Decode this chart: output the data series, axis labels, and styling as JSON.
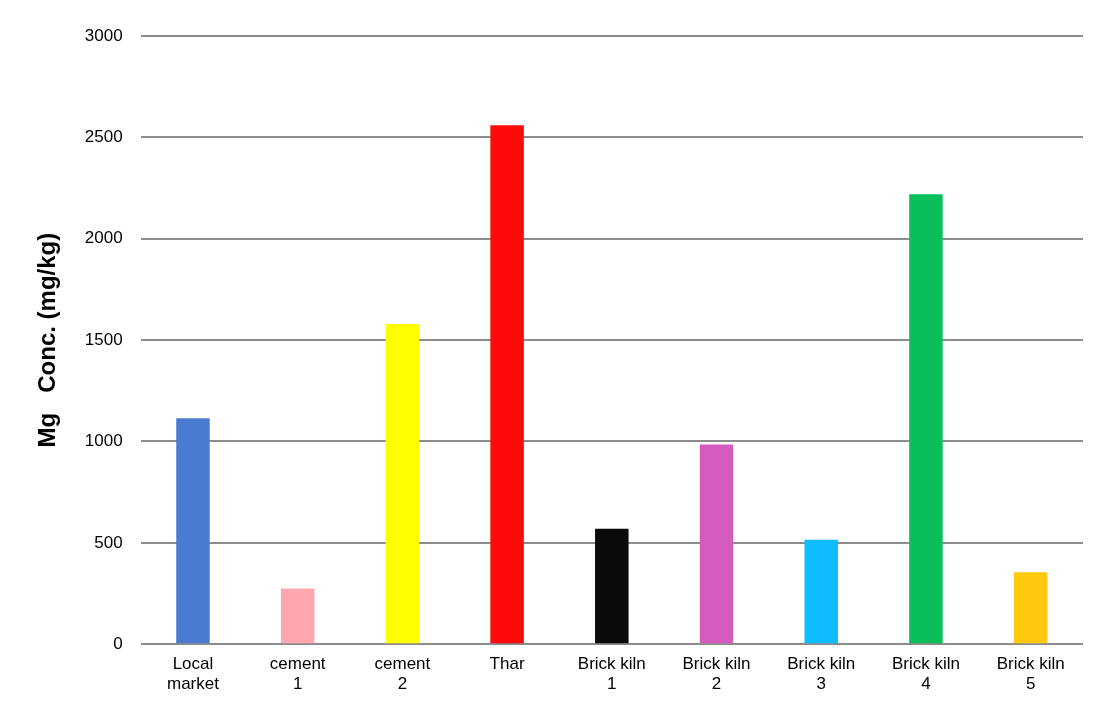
{
  "chart_data": {
    "type": "bar",
    "ylabel": "Mg   Conc. (mg/kg)",
    "categories": [
      "Local market",
      "cement 1",
      "cement 2",
      "Thar",
      "Brick kiln 1",
      "Brick kiln 2",
      "Brick kiln 3",
      "Brick kiln 4",
      "Brick kiln 5"
    ],
    "values": [
      1115,
      275,
      1580,
      2560,
      570,
      985,
      515,
      2220,
      355
    ],
    "colors": [
      "#4a7bd0",
      "#ffa6ae",
      "#ffff00",
      "#ff0a0a",
      "#0a0a0a",
      "#d45cbe",
      "#0ebdff",
      "#0abf5a",
      "#ffc90e"
    ],
    "ylim": [
      0,
      3000
    ],
    "yticks": [
      0,
      500,
      1000,
      1500,
      2000,
      2500,
      3000
    ],
    "grid": "y",
    "legend": false
  }
}
